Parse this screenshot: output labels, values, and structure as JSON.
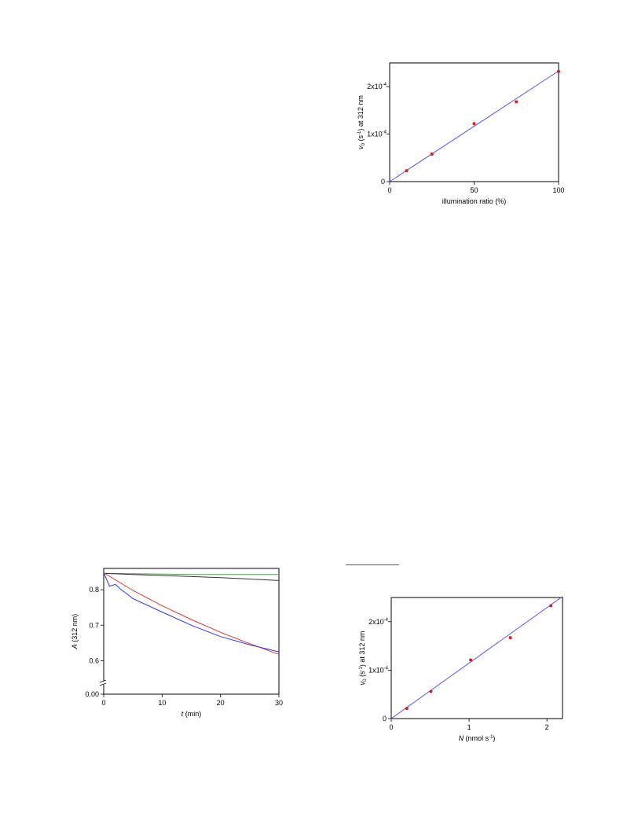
{
  "chart_data": [
    {
      "type": "scatter",
      "xlabel": "illumination ratio (%)",
      "ylabel": {
        "v": "v",
        "sub": "0",
        "unit_pre": " (s",
        "exp": "-1",
        "unit_post": ") at 312 nm"
      },
      "xlim": [
        0,
        100
      ],
      "ylim": [
        0,
        0.00025
      ],
      "xticks": [
        "0",
        "50",
        "100"
      ],
      "xtick_values": [
        0,
        50,
        100
      ],
      "yticks": [
        {
          "value": 0,
          "base": "0",
          "exp": ""
        },
        {
          "value": 0.0001,
          "base": "1x10",
          "exp": "-4"
        },
        {
          "value": 0.0002,
          "base": "2x10",
          "exp": "-4"
        }
      ],
      "points": {
        "x": [
          10,
          25,
          50,
          75,
          100
        ],
        "y": [
          2.3e-05,
          5.8e-05,
          0.000122,
          0.000168,
          0.000232
        ]
      },
      "fit": {
        "x": [
          0,
          100
        ],
        "y": [
          0,
          0.000233
        ]
      },
      "colors": {
        "points": "#cc2222",
        "fit": "#5555ee"
      }
    },
    {
      "type": "line",
      "xlabel": {
        "t": "t",
        "rest": " (min)"
      },
      "ylabel": {
        "a": "A",
        "rest": " (312 nm)"
      },
      "xlim": [
        0,
        30
      ],
      "ylim": [
        0.55,
        0.86
      ],
      "axis_break": true,
      "xticks": [
        "0",
        "10",
        "20",
        "30"
      ],
      "xtick_values": [
        0,
        10,
        20,
        30
      ],
      "yticks": [
        "0.6",
        "0.7",
        "0.8"
      ],
      "ytick_values": [
        0.6,
        0.7,
        0.8
      ],
      "ybreak_label": "0.00",
      "series": [
        {
          "color": "#5a9a5a",
          "x": [
            0,
            5,
            10,
            15,
            20,
            25,
            30
          ],
          "y": [
            0.846,
            0.845,
            0.844,
            0.843,
            0.843,
            0.843,
            0.843
          ]
        },
        {
          "color": "#333333",
          "x": [
            0,
            5,
            10,
            15,
            20,
            25,
            30
          ],
          "y": [
            0.846,
            0.843,
            0.84,
            0.837,
            0.834,
            0.83,
            0.826
          ]
        },
        {
          "color": "#dd3333",
          "x": [
            0,
            2,
            5,
            10,
            15,
            20,
            25,
            30
          ],
          "y": [
            0.848,
            0.828,
            0.798,
            0.755,
            0.716,
            0.68,
            0.648,
            0.618
          ]
        },
        {
          "color": "#3333dd",
          "x": [
            0,
            1,
            2,
            3,
            4,
            5,
            10,
            15,
            20,
            25,
            30
          ],
          "y": [
            0.848,
            0.81,
            0.815,
            0.8,
            0.788,
            0.775,
            0.737,
            0.7,
            0.668,
            0.645,
            0.625
          ]
        }
      ]
    },
    {
      "type": "scatter",
      "xlabel": {
        "n": "N",
        "unit_pre": " (nmol s",
        "exp": "-1",
        "unit_post": ")"
      },
      "ylabel": {
        "v": "v",
        "sub": "0",
        "unit_pre": " (s",
        "exp": "-1",
        "unit_post": ") at 312 nm"
      },
      "xlim": [
        0,
        2.2
      ],
      "ylim": [
        0,
        0.00025
      ],
      "xticks": [
        "0",
        "1",
        "2"
      ],
      "xtick_values": [
        0,
        1,
        2
      ],
      "yticks": [
        {
          "value": 0,
          "base": "0",
          "exp": ""
        },
        {
          "value": 0.0001,
          "base": "1x10",
          "exp": "-4"
        },
        {
          "value": 0.0002,
          "base": "2x10",
          "exp": "-4"
        }
      ],
      "points": {
        "x": [
          0.2,
          0.51,
          1.02,
          1.53,
          2.05
        ],
        "y": [
          2.1e-05,
          5.6e-05,
          0.000121,
          0.000167,
          0.000233
        ]
      },
      "fit": {
        "x": [
          0,
          2.2
        ],
        "y": [
          0,
          0.000252
        ]
      },
      "colors": {
        "points": "#cc2222",
        "fit": "#5555ee"
      }
    }
  ]
}
